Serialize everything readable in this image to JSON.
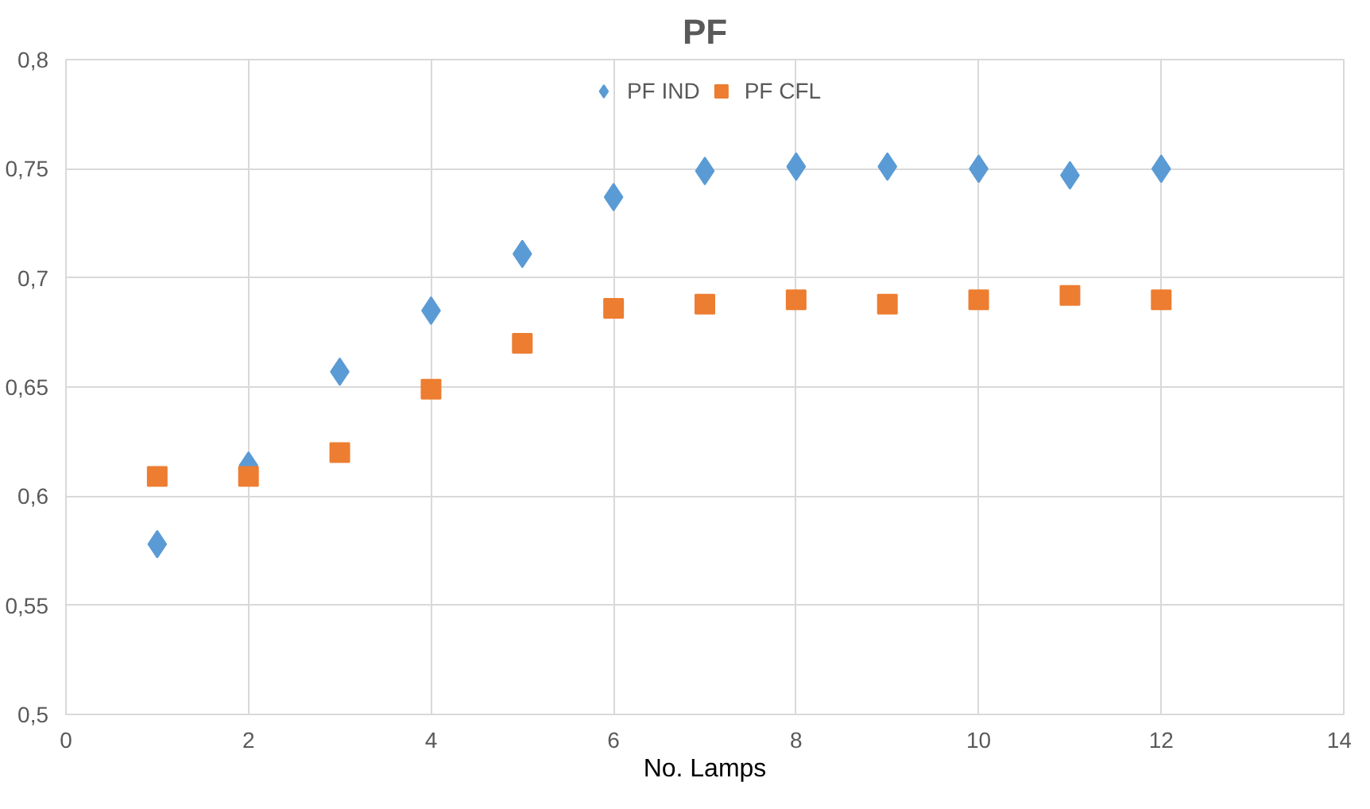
{
  "chart_data": {
    "type": "scatter",
    "title": "PF",
    "xlabel": "No. Lamps",
    "x": [
      1,
      2,
      3,
      4,
      5,
      6,
      7,
      8,
      9,
      10,
      11,
      12
    ],
    "series": [
      {
        "name": "PF IND",
        "color": "#5b9bd5",
        "marker": "diamond",
        "values": [
          0.578,
          0.614,
          0.657,
          0.685,
          0.711,
          0.737,
          0.749,
          0.751,
          0.751,
          0.75,
          0.747,
          0.75
        ]
      },
      {
        "name": "PF CFL",
        "color": "#ed7d31",
        "marker": "square",
        "values": [
          0.609,
          0.609,
          0.62,
          0.649,
          0.67,
          0.686,
          0.688,
          0.69,
          0.688,
          0.69,
          0.692,
          0.69
        ]
      }
    ],
    "xlim": [
      0,
      14
    ],
    "xticks": [
      0,
      2,
      4,
      6,
      8,
      10,
      12,
      14
    ],
    "ylim": [
      0.5,
      0.8
    ],
    "yticks": [
      {
        "value": 0.5,
        "label": "0,5"
      },
      {
        "value": 0.55,
        "label": "0,55"
      },
      {
        "value": 0.6,
        "label": "0,6"
      },
      {
        "value": 0.65,
        "label": "0,65"
      },
      {
        "value": 0.7,
        "label": "0,7"
      },
      {
        "value": 0.75,
        "label": "0,75"
      },
      {
        "value": 0.8,
        "label": "0,8"
      }
    ],
    "grid": true,
    "legend": "top"
  }
}
